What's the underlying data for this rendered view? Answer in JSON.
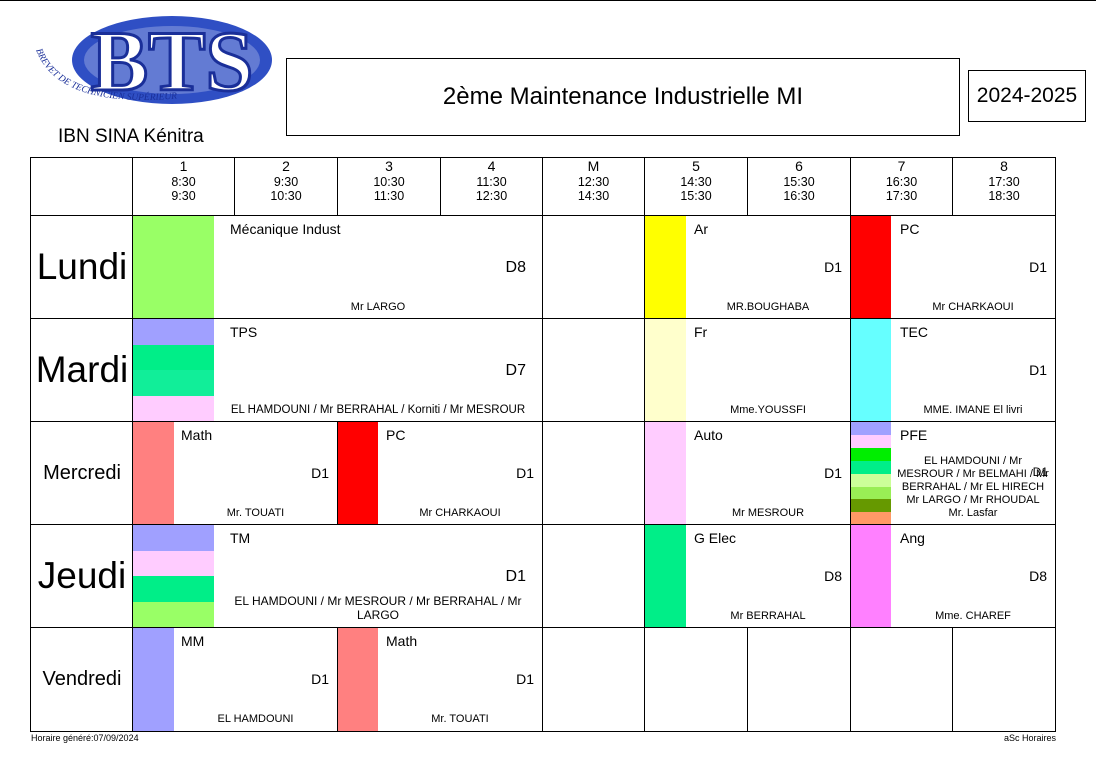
{
  "header": {
    "logo_text": "BTS",
    "logo_arc_text": "BREVET DE TECHNICIEN SUPÉRIEUR",
    "school": "IBN SINA Kénitra",
    "class_title": "2ème  Maintenance Industrielle MI",
    "year": "2024-2025"
  },
  "periods": [
    {
      "num": "1",
      "start": "8:30",
      "end": "9:30"
    },
    {
      "num": "2",
      "start": "9:30",
      "end": "10:30"
    },
    {
      "num": "3",
      "start": "10:30",
      "end": "11:30"
    },
    {
      "num": "4",
      "start": "11:30",
      "end": "12:30"
    },
    {
      "num": "M",
      "start": "12:30",
      "end": "14:30"
    },
    {
      "num": "5",
      "start": "14:30",
      "end": "15:30"
    },
    {
      "num": "6",
      "start": "15:30",
      "end": "16:30"
    },
    {
      "num": "7",
      "start": "16:30",
      "end": "17:30"
    },
    {
      "num": "8",
      "start": "17:30",
      "end": "18:30"
    }
  ],
  "days": [
    "Lundi",
    "Mardi",
    "Mercredi",
    "Jeudi",
    "Vendredi"
  ],
  "lessons": {
    "lun_mec": {
      "subject": "Mécanique Indust",
      "room": "D8",
      "teacher": "Mr LARGO"
    },
    "lun_ar": {
      "subject": "Ar",
      "room": "D1",
      "teacher": "MR.BOUGHABA"
    },
    "lun_pc": {
      "subject": "PC",
      "room": "D1",
      "teacher": "Mr CHARKAOUI"
    },
    "mar_tps": {
      "subject": "TPS",
      "room": "D7",
      "teacher": "EL HAMDOUNI / Mr BERRAHAL / Korniti / Mr MESROUR"
    },
    "mar_fr": {
      "subject": "Fr",
      "room": "",
      "teacher": "Mme.YOUSSFI"
    },
    "mar_tec": {
      "subject": "TEC",
      "room": "D1",
      "teacher": "MME. IMANE El livri"
    },
    "mer_math": {
      "subject": "Math",
      "room": "D1",
      "teacher": "Mr. TOUATI"
    },
    "mer_pc": {
      "subject": "PC",
      "room": "D1",
      "teacher": "Mr CHARKAOUI"
    },
    "mer_auto": {
      "subject": "Auto",
      "room": "D1",
      "teacher": "Mr MESROUR"
    },
    "mer_pfe": {
      "subject": "PFE",
      "room": "D1",
      "teacher_lines": [
        "EL HAMDOUNI / Mr",
        "MESROUR / Mr BELMAHI / Mr",
        "BERRAHAL / Mr EL HIRECH",
        "Mr LARGO / Mr RHOUDAL",
        "Mr. Lasfar"
      ]
    },
    "jeu_tm": {
      "subject": "TM",
      "room": "D1",
      "teacher_lines": [
        "EL HAMDOUNI / Mr MESROUR / Mr BERRAHAL / Mr",
        "LARGO"
      ]
    },
    "jeu_gelec": {
      "subject": "G Elec",
      "room": "D8",
      "teacher": "Mr BERRAHAL"
    },
    "jeu_ang": {
      "subject": "Ang",
      "room": "D8",
      "teacher": "Mme. CHAREF"
    },
    "ven_mm": {
      "subject": "MM",
      "room": "D1",
      "teacher": "EL HAMDOUNI"
    },
    "ven_math": {
      "subject": "Math",
      "room": "D1",
      "teacher": "Mr. TOUATI"
    }
  },
  "colors": {
    "green_light": "#99ff66",
    "yellow": "#ffff00",
    "red": "#ff0000",
    "lavender": "#a0a0ff",
    "mint": "#00ee88",
    "pink": "#ffccff",
    "cream": "#ffffcc",
    "cyan": "#66ffff",
    "salmon": "#ff8080",
    "magenta": "#ff80ff",
    "olive": "#669900",
    "orange": "#ff9966",
    "lime": "#ccff99"
  },
  "footer": {
    "generated": "Horaire généré:07/09/2024",
    "software": "aSc Horaires"
  }
}
